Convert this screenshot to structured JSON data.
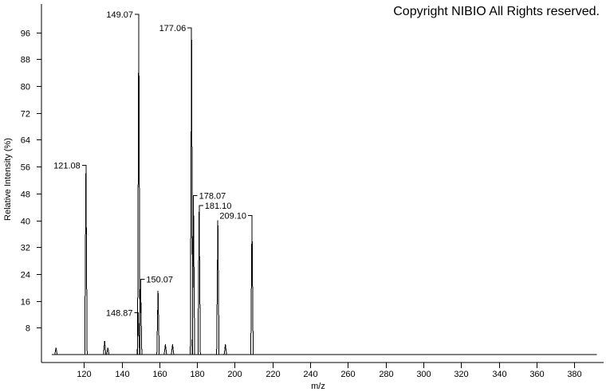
{
  "chart_data": {
    "type": "spectrum",
    "copyright": "Copyright NIBIO All Rights reserved.",
    "x_label": "m/z",
    "y_label": "Relative Intensity (%)",
    "color": "#000000",
    "xlim": [
      97.5,
      395.5
    ],
    "ylim": [
      -2.4,
      104.5
    ],
    "xticks": [
      120,
      140,
      160,
      180,
      200,
      220,
      240,
      260,
      280,
      300,
      320,
      340,
      360,
      380
    ],
    "yticks": [
      8,
      16,
      24,
      32,
      40,
      48,
      56,
      64,
      72,
      80,
      88,
      96
    ],
    "x": [
      105.2,
      121.08,
      131,
      132.7,
      148.87,
      149.07,
      150.07,
      159.3,
      163.2,
      167,
      177.06,
      178.07,
      181.1,
      191,
      195,
      209.1
    ],
    "values": [
      2,
      55,
      4,
      2,
      11,
      100,
      21,
      19,
      3,
      3,
      96,
      46,
      43,
      40,
      3,
      40
    ],
    "peak_labels": [
      null,
      "121.08",
      null,
      null,
      "148.87",
      "149.07",
      "150.07",
      null,
      null,
      null,
      "177.06",
      "178.07",
      "181.10",
      null,
      null,
      "209.10"
    ]
  }
}
